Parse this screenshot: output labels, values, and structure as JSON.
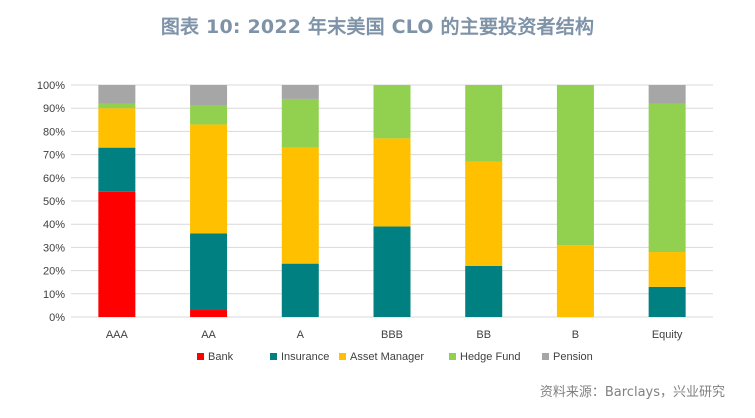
{
  "title": "图表 10: 2022 年末美国 CLO 的主要投资者结构",
  "source": "资料来源：Barclays，兴业研究",
  "chart_data": {
    "type": "bar",
    "stacked": true,
    "categories": [
      "AAA",
      "AA",
      "A",
      "BBB",
      "BB",
      "B",
      "Equity"
    ],
    "ylim": [
      0,
      100
    ],
    "y_ticks": [
      "0%",
      "10%",
      "20%",
      "30%",
      "40%",
      "50%",
      "60%",
      "70%",
      "80%",
      "90%",
      "100%"
    ],
    "y_tick_values": [
      0,
      10,
      20,
      30,
      40,
      50,
      60,
      70,
      80,
      90,
      100
    ],
    "grid": true,
    "legend_position": "bottom",
    "series": [
      {
        "name": "Bank",
        "color": "#ff0000",
        "values": [
          54,
          3,
          0,
          0,
          0,
          0,
          0
        ]
      },
      {
        "name": "Insurance",
        "color": "#008080",
        "values": [
          19,
          33,
          23,
          39,
          22,
          0,
          13
        ]
      },
      {
        "name": "Asset Manager",
        "color": "#ffc000",
        "values": [
          17,
          47,
          50,
          38,
          45,
          31,
          15
        ]
      },
      {
        "name": "Hedge Fund",
        "color": "#92d050",
        "values": [
          2,
          8,
          21,
          23,
          33,
          69,
          64
        ]
      },
      {
        "name": "Pension",
        "color": "#a6a6a6",
        "values": [
          8,
          9,
          6,
          0,
          0,
          0,
          8
        ]
      }
    ]
  }
}
